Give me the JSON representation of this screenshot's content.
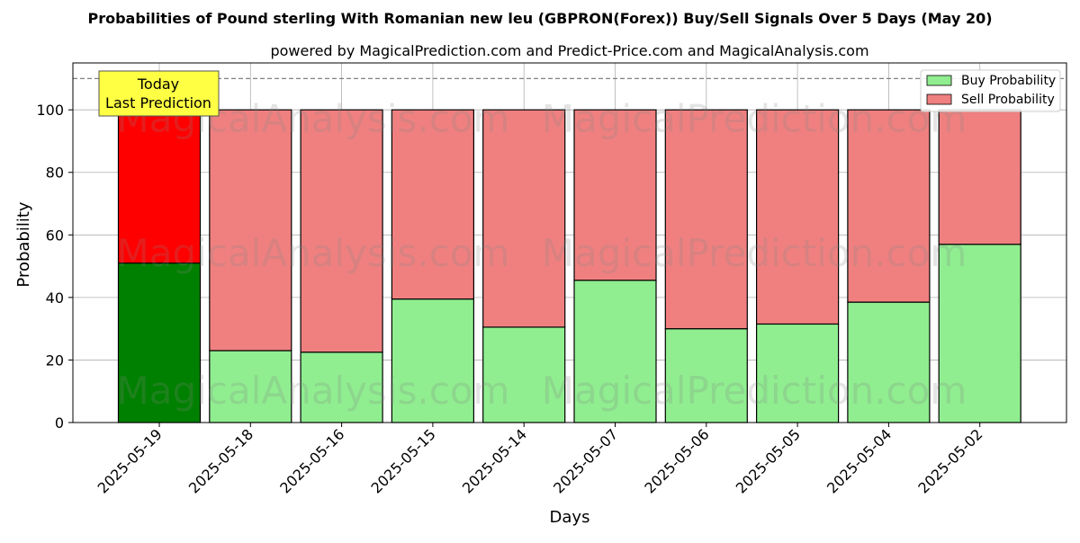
{
  "chart_data": {
    "type": "bar",
    "title": "Probabilities of Pound sterling With Romanian new leu (GBPRON(Forex)) Buy/Sell Signals Over 5 Days (May 20)",
    "subtitle": "powered by MagicalPrediction.com and Predict-Price.com and MagicalAnalysis.com",
    "xlabel": "Days",
    "ylabel": "Probability",
    "ylim": [
      0,
      115
    ],
    "yticks": [
      0,
      20,
      40,
      60,
      80,
      100
    ],
    "grid": true,
    "stacked": true,
    "categories": [
      "2025-05-19",
      "2025-05-18",
      "2025-05-16",
      "2025-05-15",
      "2025-05-14",
      "2025-05-07",
      "2025-05-06",
      "2025-05-05",
      "2025-05-04",
      "2025-05-02"
    ],
    "series": [
      {
        "name": "Buy Probability",
        "values": [
          51,
          23,
          22.5,
          39.5,
          30.5,
          45.5,
          30,
          31.5,
          38.5,
          57
        ],
        "color": "#90ee90",
        "highlight_color": "#008000"
      },
      {
        "name": "Sell Probability",
        "values": [
          49,
          77,
          77.5,
          60.5,
          69.5,
          54.5,
          70,
          68.5,
          61.5,
          43
        ],
        "color": "#f08080",
        "highlight_color": "#ff0000"
      }
    ],
    "reference_line": 110,
    "legend_position": "top-right",
    "annotation": {
      "lines": [
        "Today",
        "Last Prediction"
      ],
      "color": "#ffff44"
    },
    "watermarks": [
      "MagicalAnalysis.com",
      "MagicalPrediction.com"
    ]
  }
}
